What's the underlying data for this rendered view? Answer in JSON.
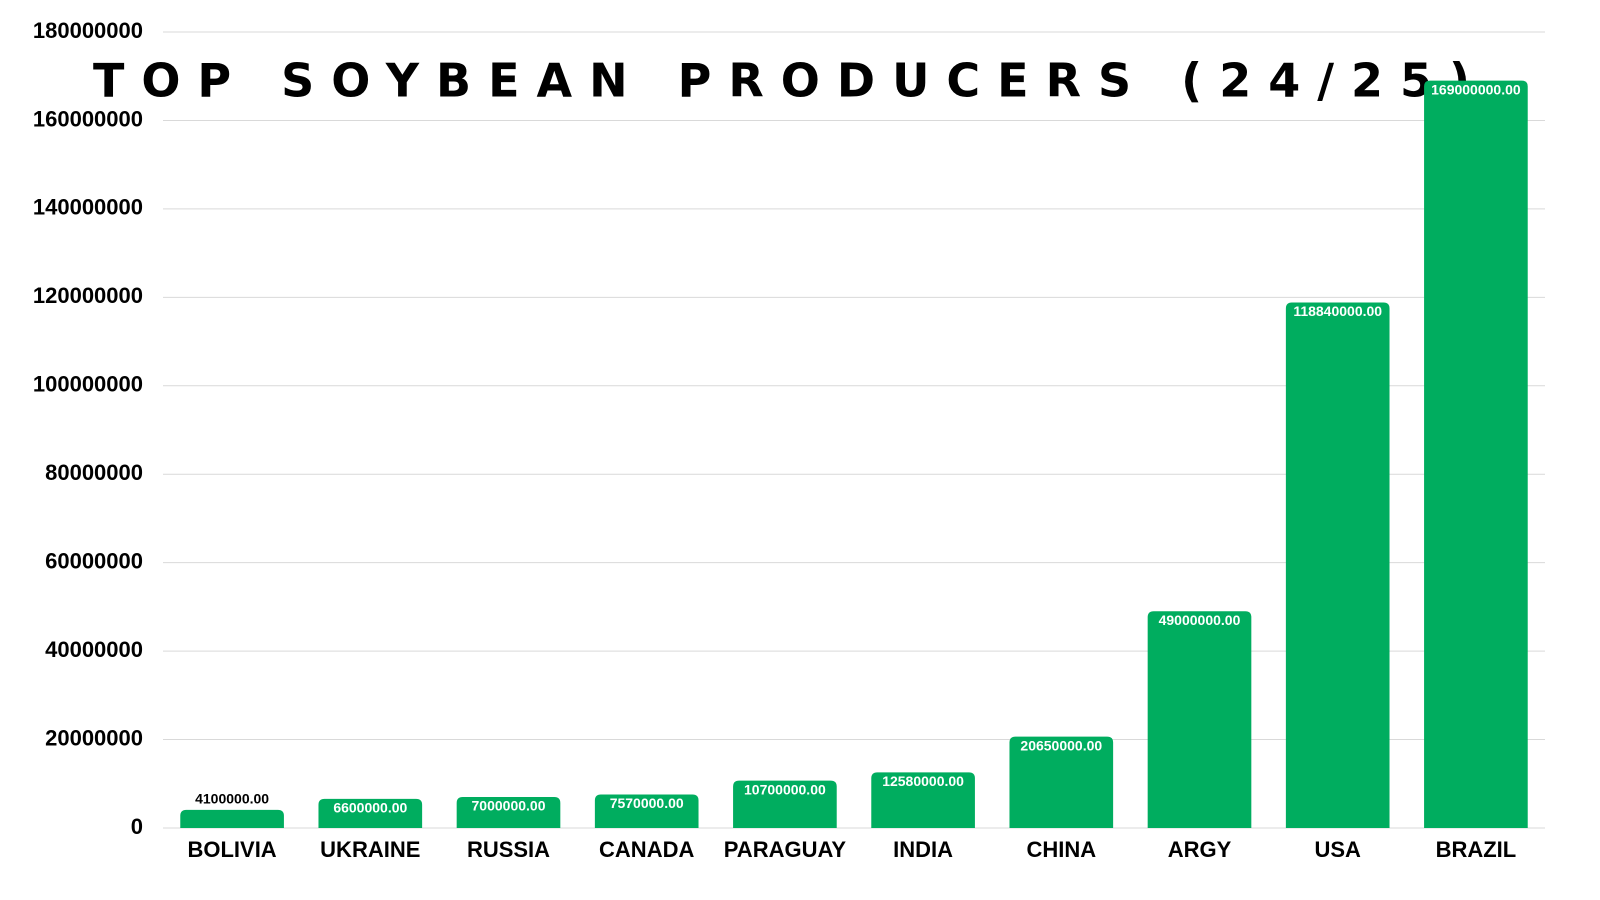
{
  "chart_data": {
    "type": "bar",
    "title": "TOP SOYBEAN PRODUCERS (24/25)",
    "categories": [
      "BOLIVIA",
      "UKRAINE",
      "RUSSIA",
      "CANADA",
      "PARAGUAY",
      "INDIA",
      "CHINA",
      "ARGY",
      "USA",
      "BRAZIL"
    ],
    "values": [
      4100000,
      6600000,
      7000000,
      7570000,
      10700000,
      12580000,
      20650000,
      49000000,
      118840000,
      169000000
    ],
    "value_labels": [
      "4100000.00",
      "6600000.00",
      "7000000.00",
      "7570000.00",
      "10700000.00",
      "12580000.00",
      "20650000.00",
      "49000000.00",
      "118840000.00",
      "169000000.00"
    ],
    "color": "#00ad5f",
    "ylim": [
      0,
      180000000
    ],
    "yticks": [
      0,
      20000000,
      40000000,
      60000000,
      80000000,
      100000000,
      120000000,
      140000000,
      160000000,
      180000000
    ],
    "grid": true
  }
}
